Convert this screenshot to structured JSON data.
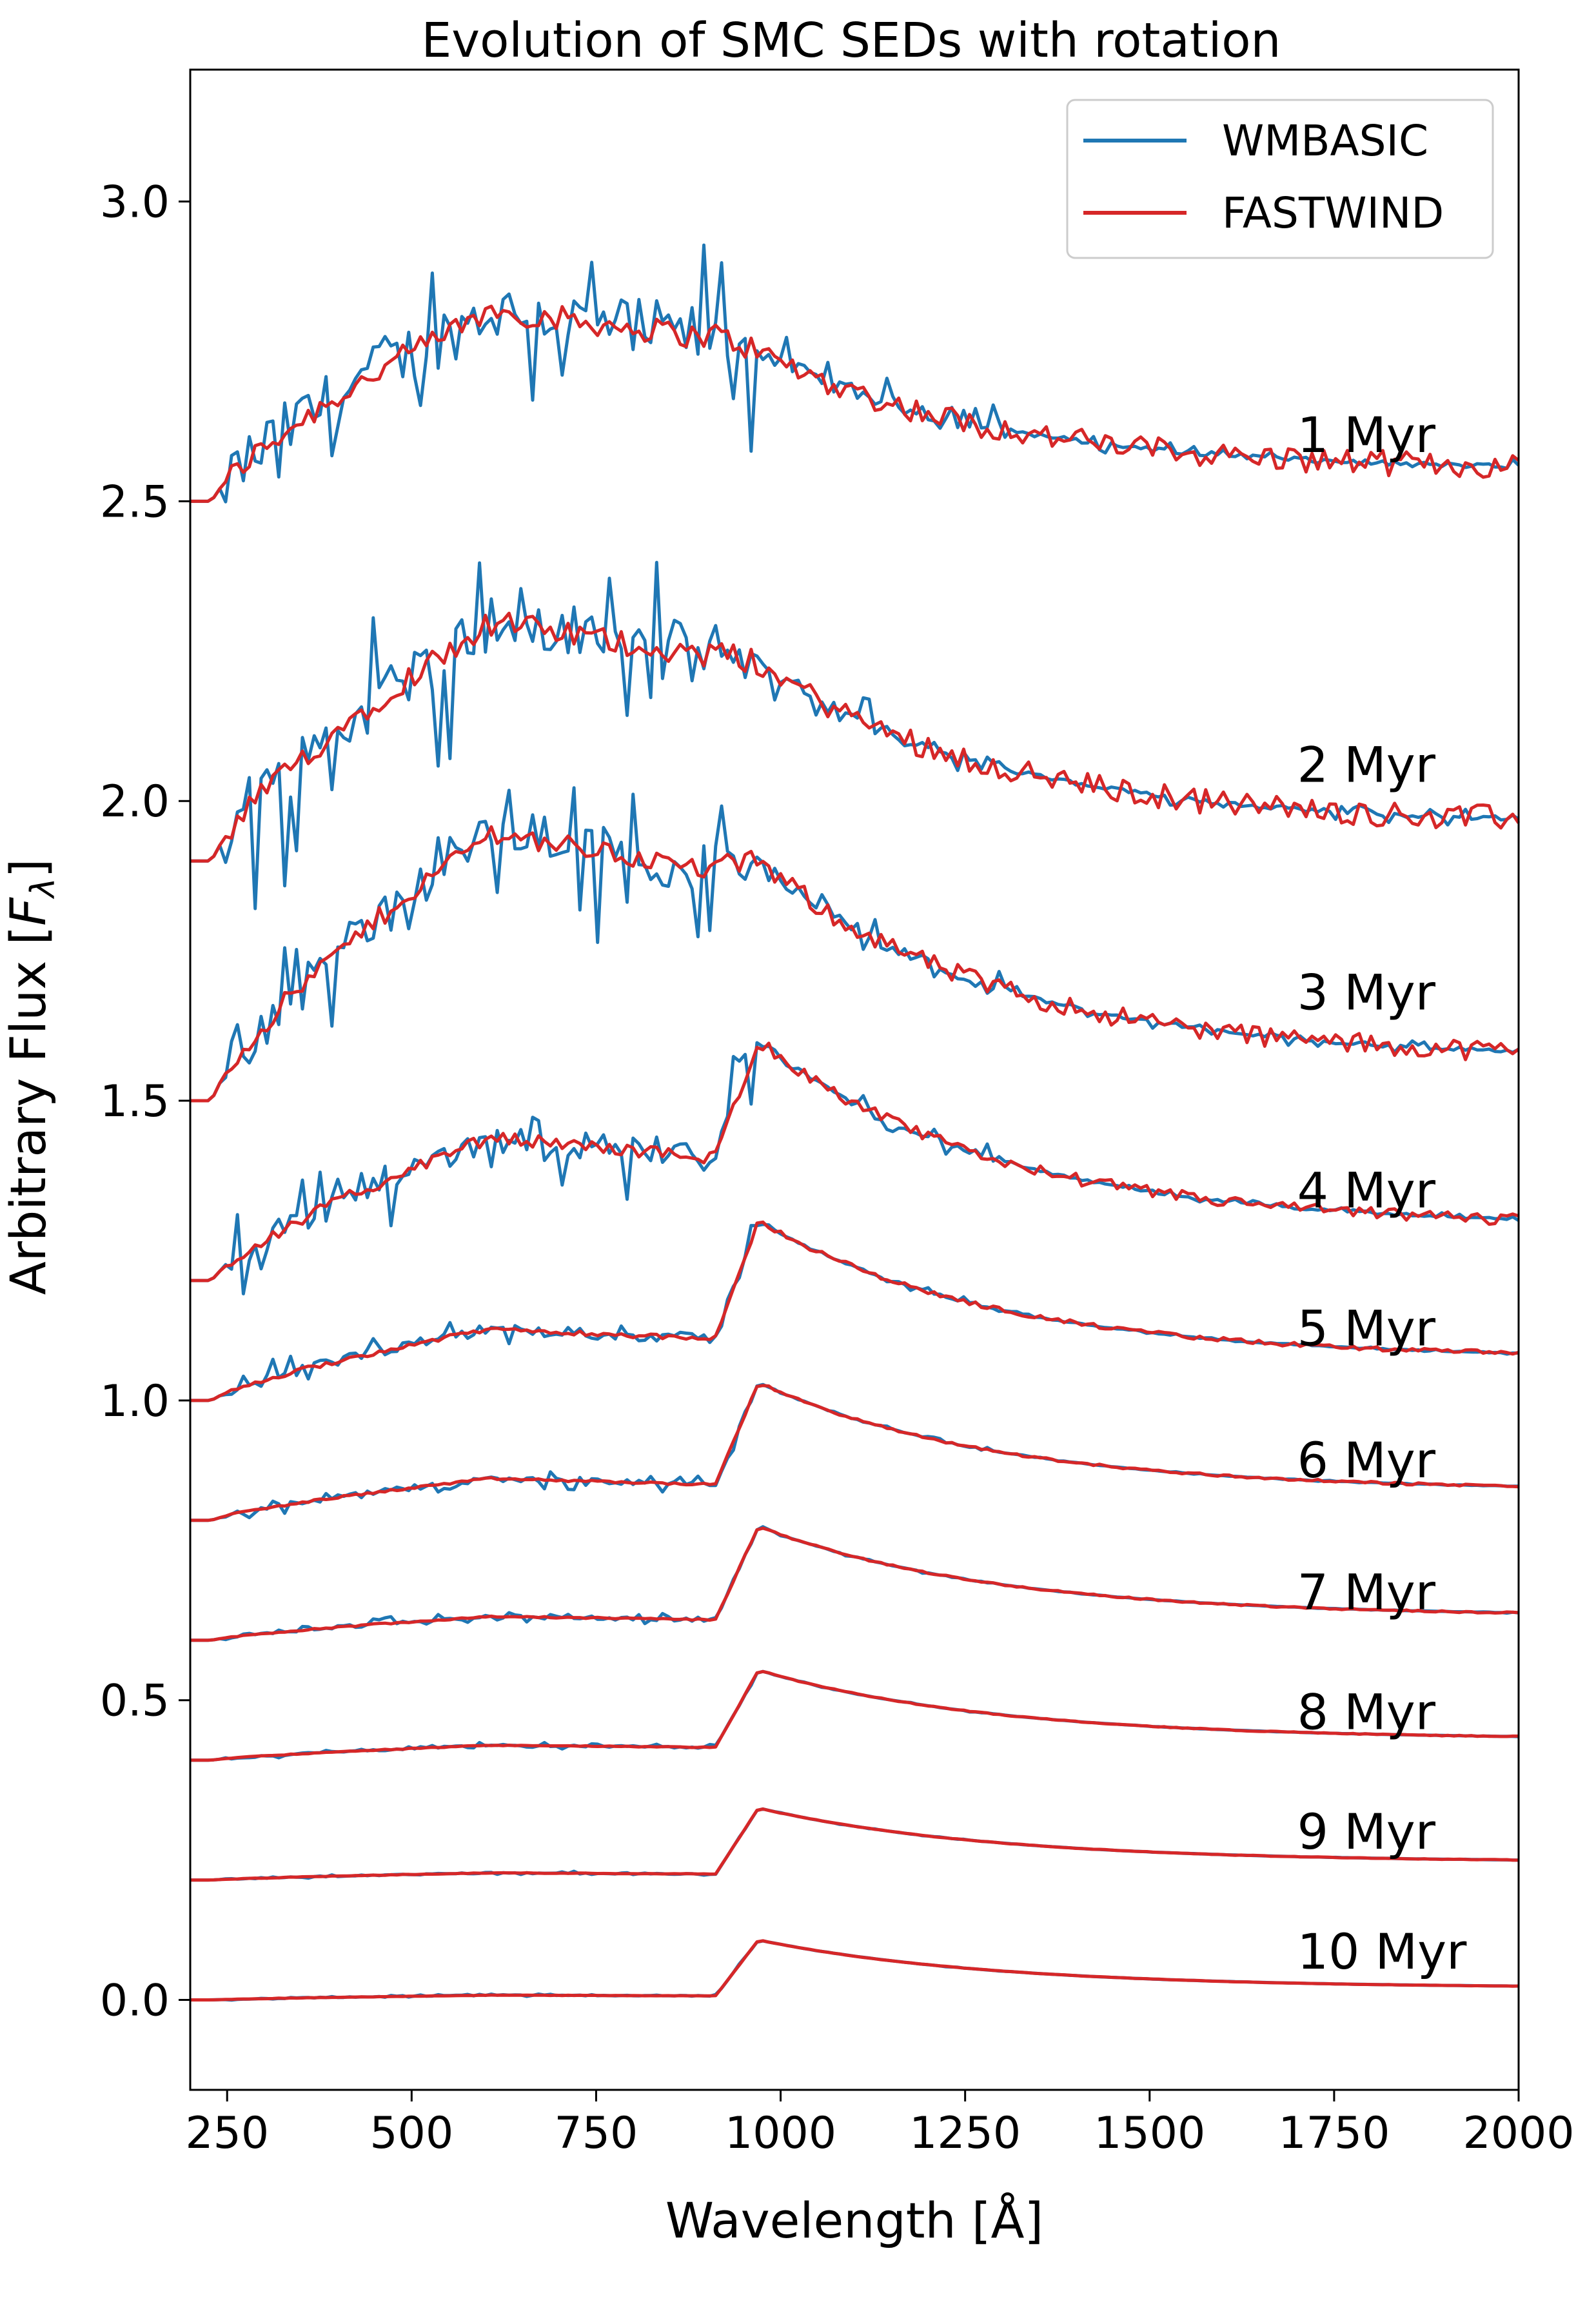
{
  "chart_data": {
    "type": "line",
    "title": "Evolution of SMC SEDs with rotation",
    "xlabel": "Wavelength [Å]",
    "ylabel": "Arbitrary Flux [F_λ]",
    "ylabel_parts": [
      "Arbitrary Flux [",
      "F",
      "λ",
      "]"
    ],
    "xlim": [
      200,
      2000
    ],
    "ylim": [
      -0.15,
      3.22
    ],
    "xticks": [
      250,
      500,
      750,
      1000,
      1250,
      1500,
      1750,
      2000
    ],
    "yticks": [
      0.0,
      0.5,
      1.0,
      1.5,
      2.0,
      2.5,
      3.0
    ],
    "xtick_labels": [
      "250",
      "500",
      "750",
      "1000",
      "1250",
      "1500",
      "1750",
      "2000"
    ],
    "ytick_labels": [
      "0.0",
      "0.5",
      "1.0",
      "1.5",
      "2.0",
      "2.5",
      "3.0"
    ],
    "legend_position": "top-right",
    "series_names": [
      "WMBASIC",
      "FASTWIND"
    ],
    "colors": {
      "WMBASIC": "#1f77b4",
      "FASTWIND": "#d62728"
    },
    "grid": false,
    "ages": [
      {
        "label": "1 Myr",
        "offset": 2.5,
        "plateau": 0.32,
        "jump": 0.25,
        "tail": 0.05,
        "noise": 0.17,
        "label_y": 2.61
      },
      {
        "label": "2 Myr",
        "offset": 1.9,
        "plateau": 0.4,
        "jump": 0.33,
        "tail": 0.06,
        "noise": 0.17,
        "label_y": 2.06
      },
      {
        "label": "3 Myr",
        "offset": 1.5,
        "plateau": 0.45,
        "jump": 0.4,
        "tail": 0.07,
        "noise": 0.14,
        "label_y": 1.68
      },
      {
        "label": "4 Myr",
        "offset": 1.2,
        "plateau": 0.24,
        "jump": 0.4,
        "tail": 0.09,
        "noise": 0.08,
        "label_y": 1.35
      },
      {
        "label": "5 Myr",
        "offset": 1.0,
        "plateau": 0.12,
        "jump": 0.3,
        "tail": 0.07,
        "noise": 0.03,
        "label_y": 1.12
      },
      {
        "label": "6 Myr",
        "offset": 0.8,
        "plateau": 0.07,
        "jump": 0.23,
        "tail": 0.05,
        "noise": 0.015,
        "label_y": 0.9
      },
      {
        "label": "7 Myr",
        "offset": 0.6,
        "plateau": 0.04,
        "jump": 0.19,
        "tail": 0.04,
        "noise": 0.01,
        "label_y": 0.68
      },
      {
        "label": "8 Myr",
        "offset": 0.4,
        "plateau": 0.025,
        "jump": 0.15,
        "tail": 0.035,
        "noise": 0.005,
        "label_y": 0.48
      },
      {
        "label": "9 Myr",
        "offset": 0.2,
        "plateau": 0.012,
        "jump": 0.12,
        "tail": 0.03,
        "noise": 0.003,
        "label_y": 0.28
      },
      {
        "label": "10 Myr",
        "offset": 0.0,
        "plateau": 0.008,
        "jump": 0.1,
        "tail": 0.02,
        "noise": 0.002,
        "label_y": 0.08
      }
    ]
  }
}
